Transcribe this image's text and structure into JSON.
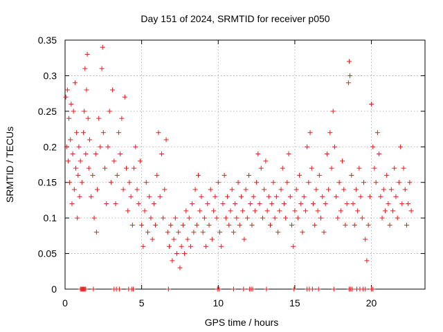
{
  "chart_data": {
    "type": "scatter",
    "title": "Day 151 of 2024, SRMTID for receiver p050",
    "xlabel": "GPS time / hours",
    "ylabel": "SRMTID / TECUs",
    "xlim": [
      0,
      23.5
    ],
    "ylim": [
      0,
      0.35
    ],
    "xticks": [
      0,
      5,
      10,
      15,
      20
    ],
    "xtick_labels": [
      "0",
      "5",
      "10",
      "15",
      "20"
    ],
    "yticks": [
      0,
      0.05,
      0.1,
      0.15,
      0.2,
      0.25,
      0.3,
      0.35
    ],
    "ytick_labels": [
      "0",
      "0.05",
      "0.1",
      "0.15",
      "0.2",
      "0.25",
      "0.3",
      "0.35"
    ],
    "grid": true,
    "marker": "plus",
    "color": "#e41a1c",
    "series": [
      {
        "name": "SRMTID",
        "points": [
          [
            0.05,
            0.27
          ],
          [
            0.1,
            0.2
          ],
          [
            0.15,
            0.28
          ],
          [
            0.2,
            0.18
          ],
          [
            0.25,
            0.24
          ],
          [
            0.3,
            0.15
          ],
          [
            0.35,
            0.21
          ],
          [
            0.4,
            0.26
          ],
          [
            0.45,
            0.12
          ],
          [
            0.5,
            0.19
          ],
          [
            0.55,
            0.25
          ],
          [
            0.6,
            0.14
          ],
          [
            0.65,
            0.29
          ],
          [
            0.7,
            0.17
          ],
          [
            0.75,
            0.22
          ],
          [
            0.8,
            0.1
          ],
          [
            0.85,
            0.16
          ],
          [
            0.9,
            0.2
          ],
          [
            0.95,
            0.13
          ],
          [
            1.0,
            0.18
          ],
          [
            1.1,
            0.15
          ],
          [
            1.2,
            0.22
          ],
          [
            1.25,
            0.25
          ],
          [
            1.3,
            0.31
          ],
          [
            1.35,
            0.19
          ],
          [
            1.4,
            0.28
          ],
          [
            1.45,
            0.33
          ],
          [
            1.5,
            0.24
          ],
          [
            1.55,
            0.17
          ],
          [
            1.6,
            0.21
          ],
          [
            1.7,
            0.13
          ],
          [
            1.8,
            0.16
          ],
          [
            1.9,
            0.1
          ],
          [
            2.0,
            0.19
          ],
          [
            2.05,
            0.08
          ],
          [
            2.1,
            0.14
          ],
          [
            2.2,
            0.24
          ],
          [
            2.3,
            0.2
          ],
          [
            2.4,
            0.31
          ],
          [
            2.45,
            0.34
          ],
          [
            2.5,
            0.22
          ],
          [
            2.6,
            0.17
          ],
          [
            2.7,
            0.12
          ],
          [
            2.8,
            0.2
          ],
          [
            2.9,
            0.25
          ],
          [
            3.0,
            0.15
          ],
          [
            3.1,
            0.28
          ],
          [
            3.2,
            0.18
          ],
          [
            3.3,
            0.12
          ],
          [
            3.4,
            0.16
          ],
          [
            3.5,
            0.22
          ],
          [
            3.6,
            0.19
          ],
          [
            3.7,
            0.24
          ],
          [
            3.8,
            0.14
          ],
          [
            3.9,
            0.27
          ],
          [
            4.0,
            0.17
          ],
          [
            4.1,
            0.11
          ],
          [
            4.2,
            0.15
          ],
          [
            4.3,
            0.13
          ],
          [
            4.4,
            0.09
          ],
          [
            4.5,
            0.17
          ],
          [
            4.6,
            0.2
          ],
          [
            4.7,
            0.14
          ],
          [
            4.8,
            0.12
          ],
          [
            4.9,
            0.18
          ],
          [
            5.0,
            0.09
          ],
          [
            5.1,
            0.06
          ],
          [
            5.2,
            0.11
          ],
          [
            5.3,
            0.15
          ],
          [
            5.4,
            0.08
          ],
          [
            5.5,
            0.13
          ],
          [
            5.6,
            0.1
          ],
          [
            5.7,
            0.07
          ],
          [
            5.8,
            0.12
          ],
          [
            5.9,
            0.09
          ],
          [
            6.0,
            0.16
          ],
          [
            6.1,
            0.22
          ],
          [
            6.2,
            0.13
          ],
          [
            6.3,
            0.19
          ],
          [
            6.4,
            0.1
          ],
          [
            6.5,
            0.14
          ],
          [
            6.6,
            0.21
          ],
          [
            6.7,
            0.08
          ],
          [
            6.8,
            0.06
          ],
          [
            6.9,
            0.09
          ],
          [
            7.0,
            0.04
          ],
          [
            7.1,
            0.07
          ],
          [
            7.2,
            0.1
          ],
          [
            7.3,
            0.05
          ],
          [
            7.4,
            0.08
          ],
          [
            7.5,
            0.03
          ],
          [
            7.6,
            0.06
          ],
          [
            7.7,
            0.09
          ],
          [
            7.8,
            0.05
          ],
          [
            7.9,
            0.11
          ],
          [
            8.0,
            0.07
          ],
          [
            8.1,
            0.1
          ],
          [
            8.2,
            0.06
          ],
          [
            8.3,
            0.12
          ],
          [
            8.4,
            0.08
          ],
          [
            8.5,
            0.14
          ],
          [
            8.6,
            0.09
          ],
          [
            8.7,
            0.16
          ],
          [
            8.8,
            0.11
          ],
          [
            8.9,
            0.13
          ],
          [
            9.0,
            0.08
          ],
          [
            9.1,
            0.1
          ],
          [
            9.2,
            0.06
          ],
          [
            9.3,
            0.12
          ],
          [
            9.4,
            0.09
          ],
          [
            9.5,
            0.14
          ],
          [
            9.6,
            0.07
          ],
          [
            9.7,
            0.11
          ],
          [
            9.8,
            0.13
          ],
          [
            9.9,
            0.1
          ],
          [
            10.0,
            0.15
          ],
          [
            10.1,
            0.08
          ],
          [
            10.2,
            0.06
          ],
          [
            10.3,
            0.12
          ],
          [
            10.4,
            0.16
          ],
          [
            10.5,
            0.1
          ],
          [
            10.6,
            0.13
          ],
          [
            10.7,
            0.09
          ],
          [
            10.8,
            0.11
          ],
          [
            10.9,
            0.14
          ],
          [
            11.0,
            0.08
          ],
          [
            11.1,
            0.12
          ],
          [
            11.2,
            0.1
          ],
          [
            11.3,
            0.15
          ],
          [
            11.4,
            0.09
          ],
          [
            11.5,
            0.13
          ],
          [
            11.6,
            0.11
          ],
          [
            11.7,
            0.07
          ],
          [
            11.8,
            0.14
          ],
          [
            11.9,
            0.1
          ],
          [
            12.0,
            0.16
          ],
          [
            12.1,
            0.12
          ],
          [
            12.2,
            0.09
          ],
          [
            12.3,
            0.13
          ],
          [
            12.4,
            0.11
          ],
          [
            12.5,
            0.15
          ],
          [
            12.6,
            0.19
          ],
          [
            12.7,
            0.12
          ],
          [
            12.8,
            0.17
          ],
          [
            12.9,
            0.1
          ],
          [
            13.0,
            0.14
          ],
          [
            13.1,
            0.18
          ],
          [
            13.2,
            0.11
          ],
          [
            13.3,
            0.13
          ],
          [
            13.4,
            0.09
          ],
          [
            13.5,
            0.12
          ],
          [
            13.6,
            0.15
          ],
          [
            13.7,
            0.1
          ],
          [
            13.8,
            0.13
          ],
          [
            13.9,
            0.08
          ],
          [
            14.0,
            0.11
          ],
          [
            14.1,
            0.14
          ],
          [
            14.2,
            0.17
          ],
          [
            14.3,
            0.12
          ],
          [
            14.4,
            0.1
          ],
          [
            14.5,
            0.15
          ],
          [
            14.6,
            0.19
          ],
          [
            14.7,
            0.13
          ],
          [
            14.8,
            0.09
          ],
          [
            14.9,
            0.06
          ],
          [
            15.0,
            0.11
          ],
          [
            15.1,
            0.14
          ],
          [
            15.2,
            0.1
          ],
          [
            15.3,
            0.16
          ],
          [
            15.4,
            0.12
          ],
          [
            15.5,
            0.08
          ],
          [
            15.6,
            0.13
          ],
          [
            15.7,
            0.11
          ],
          [
            15.8,
            0.2
          ],
          [
            15.9,
            0.15
          ],
          [
            16.0,
            0.22
          ],
          [
            16.1,
            0.17
          ],
          [
            16.2,
            0.12
          ],
          [
            16.3,
            0.09
          ],
          [
            16.4,
            0.14
          ],
          [
            16.5,
            0.11
          ],
          [
            16.6,
            0.16
          ],
          [
            16.7,
            0.1
          ],
          [
            16.8,
            0.13
          ],
          [
            16.9,
            0.08
          ],
          [
            17.0,
            0.12
          ],
          [
            17.1,
            0.19
          ],
          [
            17.2,
            0.14
          ],
          [
            17.3,
            0.22
          ],
          [
            17.4,
            0.17
          ],
          [
            17.5,
            0.25
          ],
          [
            17.6,
            0.2
          ],
          [
            17.7,
            0.13
          ],
          [
            17.8,
            0.1
          ],
          [
            17.9,
            0.15
          ],
          [
            18.0,
            0.11
          ],
          [
            18.1,
            0.18
          ],
          [
            18.2,
            0.14
          ],
          [
            18.3,
            0.09
          ],
          [
            18.4,
            0.12
          ],
          [
            18.5,
            0.29
          ],
          [
            18.55,
            0.32
          ],
          [
            18.6,
            0.3
          ],
          [
            18.7,
            0.16
          ],
          [
            18.8,
            0.12
          ],
          [
            18.9,
            0.09
          ],
          [
            19.0,
            0.14
          ],
          [
            19.1,
            0.11
          ],
          [
            19.2,
            0.17
          ],
          [
            19.3,
            0.13
          ],
          [
            19.4,
            0.1
          ],
          [
            19.5,
            0.15
          ],
          [
            19.6,
            0.07
          ],
          [
            19.7,
            0.04
          ],
          [
            19.8,
            0.09
          ],
          [
            19.9,
            0.13
          ],
          [
            20.0,
            0.26
          ],
          [
            20.1,
            0.2
          ],
          [
            20.2,
            0.17
          ],
          [
            20.3,
            0.15
          ],
          [
            20.4,
            0.22
          ],
          [
            20.5,
            0.19
          ],
          [
            20.6,
            0.13
          ],
          [
            20.7,
            0.1
          ],
          [
            20.8,
            0.14
          ],
          [
            20.9,
            0.11
          ],
          [
            21.0,
            0.16
          ],
          [
            21.1,
            0.12
          ],
          [
            21.2,
            0.09
          ],
          [
            21.3,
            0.14
          ],
          [
            21.4,
            0.11
          ],
          [
            21.5,
            0.17
          ],
          [
            21.6,
            0.13
          ],
          [
            21.7,
            0.1
          ],
          [
            21.8,
            0.15
          ],
          [
            21.9,
            0.2
          ],
          [
            22.0,
            0.12
          ],
          [
            22.1,
            0.17
          ],
          [
            22.2,
            0.14
          ],
          [
            22.3,
            0.09
          ],
          [
            22.4,
            0.12
          ],
          [
            22.5,
            0.15
          ],
          [
            22.6,
            0.11
          ]
        ]
      }
    ],
    "zero_points_x": [
      1.0,
      1.05,
      1.1,
      1.15,
      1.2,
      1.25,
      1.3,
      1.35,
      1.85,
      3.2,
      3.35,
      3.55,
      4.15,
      4.35,
      4.45,
      6.75,
      9.95,
      10.05,
      11.0,
      11.65,
      12.05,
      12.15,
      12.25,
      13.15,
      14.95,
      15.8,
      15.95,
      16.15,
      16.55,
      17.55,
      18.55,
      18.65,
      18.75,
      19.05,
      19.25,
      19.45,
      19.6,
      20.0,
      20.1
    ]
  }
}
